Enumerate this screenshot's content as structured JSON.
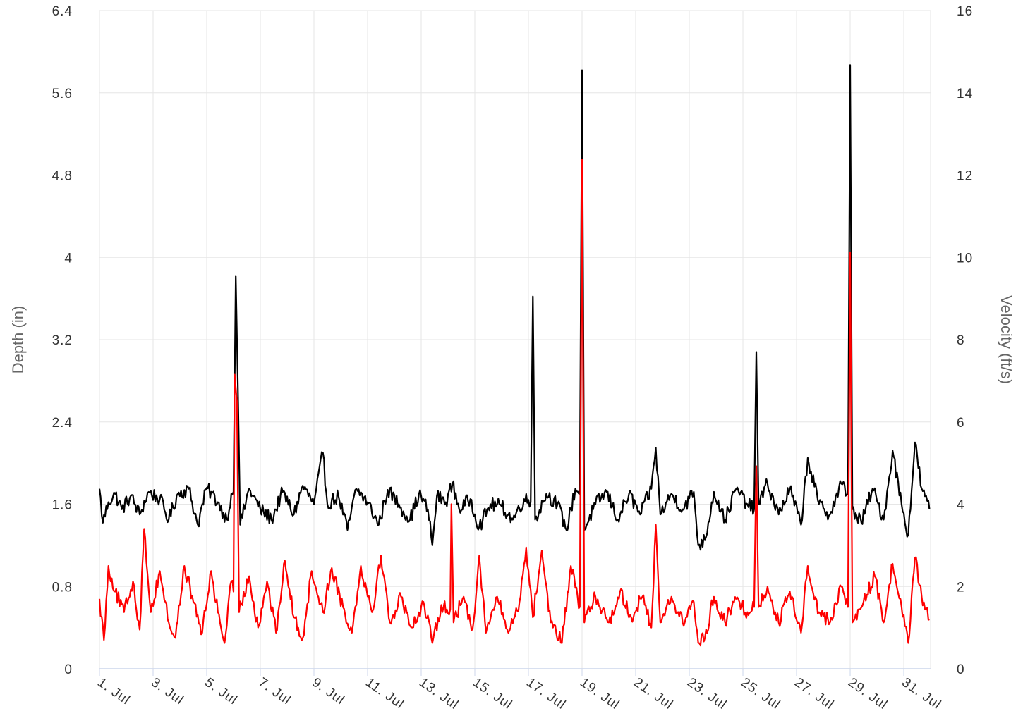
{
  "chart_data": {
    "type": "line",
    "title": "",
    "x_axis": {
      "type": "date",
      "range": [
        "2023-07-01",
        "2023-07-31T23:59"
      ],
      "tick_labels": [
        "1. Jul",
        "3. Jul",
        "5. Jul",
        "7. Jul",
        "9. Jul",
        "11. Jul",
        "13. Jul",
        "15. Jul",
        "17. Jul",
        "19. Jul",
        "21. Jul",
        "23. Jul",
        "25. Jul",
        "27. Jul",
        "29. Jul",
        "31. Jul"
      ],
      "grid": true
    },
    "y_axes": [
      {
        "id": "left",
        "label": "Depth (in)",
        "range": [
          0,
          6.4
        ],
        "tick_labels": [
          "0",
          "0.8",
          "1.6",
          "2.4",
          "3.2",
          "4",
          "4.8",
          "5.6",
          "6.4"
        ]
      },
      {
        "id": "right",
        "label": "Velocity (ft/s)",
        "range": [
          0,
          16
        ],
        "tick_labels": [
          "0",
          "2",
          "4",
          "6",
          "8",
          "10",
          "12",
          "14",
          "16"
        ]
      }
    ],
    "grid": true,
    "legend": "none",
    "colors": {
      "black_series": "#000000",
      "red_series": "#ff0000",
      "grid": "#e6e6e6",
      "x_axis_line": "#ccd6eb"
    },
    "series": [
      {
        "color": "#000000",
        "axis": "left",
        "baseline_level": 1.65,
        "points": [
          [
            "2023-07-01T00:00",
            1.75
          ],
          [
            "2023-07-01T03:00",
            1.42
          ],
          [
            "2023-07-01T08:00",
            1.62
          ],
          [
            "2023-07-01T14:00",
            1.7
          ],
          [
            "2023-07-01T20:00",
            1.55
          ],
          [
            "2023-07-02T04:00",
            1.68
          ],
          [
            "2023-07-02T12:00",
            1.5
          ],
          [
            "2023-07-02T20:00",
            1.72
          ],
          [
            "2023-07-03T06:00",
            1.65
          ],
          [
            "2023-07-03T14:00",
            1.45
          ],
          [
            "2023-07-03T22:00",
            1.7
          ],
          [
            "2023-07-04T08:00",
            1.75
          ],
          [
            "2023-07-04T16:00",
            1.4
          ],
          [
            "2023-07-05T00:00",
            1.76
          ],
          [
            "2023-07-05T10:00",
            1.62
          ],
          [
            "2023-07-05T18:00",
            1.45
          ],
          [
            "2023-07-05T22:00",
            1.7
          ],
          [
            "2023-07-06T00:00",
            1.72
          ],
          [
            "2023-07-06T02:00",
            3.82
          ],
          [
            "2023-07-06T04:00",
            2.7
          ],
          [
            "2023-07-06T06:00",
            1.4
          ],
          [
            "2023-07-06T14:00",
            1.75
          ],
          [
            "2023-07-07T00:00",
            1.55
          ],
          [
            "2023-07-07T10:00",
            1.45
          ],
          [
            "2023-07-07T20:00",
            1.72
          ],
          [
            "2023-07-08T06:00",
            1.5
          ],
          [
            "2023-07-08T14:00",
            1.78
          ],
          [
            "2023-07-09T00:00",
            1.6
          ],
          [
            "2023-07-09T08:00",
            2.1
          ],
          [
            "2023-07-09T12:00",
            1.6
          ],
          [
            "2023-07-09T22:00",
            1.68
          ],
          [
            "2023-07-10T06:00",
            1.35
          ],
          [
            "2023-07-10T14:00",
            1.75
          ],
          [
            "2023-07-11T00:00",
            1.62
          ],
          [
            "2023-07-11T10:00",
            1.4
          ],
          [
            "2023-07-11T18:00",
            1.74
          ],
          [
            "2023-07-12T04:00",
            1.6
          ],
          [
            "2023-07-12T14:00",
            1.45
          ],
          [
            "2023-07-12T22:00",
            1.7
          ],
          [
            "2023-07-13T06:00",
            1.55
          ],
          [
            "2023-07-13T10:00",
            1.2
          ],
          [
            "2023-07-13T14:00",
            1.68
          ],
          [
            "2023-07-13T22:00",
            1.62
          ],
          [
            "2023-07-14T04:00",
            1.8
          ],
          [
            "2023-07-14T10:00",
            1.55
          ],
          [
            "2023-07-14T20:00",
            1.65
          ],
          [
            "2023-07-15T04:00",
            1.38
          ],
          [
            "2023-07-15T14:00",
            1.6
          ],
          [
            "2023-07-16T00:00",
            1.58
          ],
          [
            "2023-07-16T10:00",
            1.45
          ],
          [
            "2023-07-16T20:00",
            1.65
          ],
          [
            "2023-07-17T02:00",
            1.62
          ],
          [
            "2023-07-17T04:00",
            3.62
          ],
          [
            "2023-07-17T06:00",
            1.45
          ],
          [
            "2023-07-17T16:00",
            1.7
          ],
          [
            "2023-07-18T02:00",
            1.6
          ],
          [
            "2023-07-18T10:00",
            1.35
          ],
          [
            "2023-07-18T18:00",
            1.75
          ],
          [
            "2023-07-18T22:00",
            1.7
          ],
          [
            "2023-07-19T00:00",
            5.82
          ],
          [
            "2023-07-19T02:00",
            1.35
          ],
          [
            "2023-07-19T12:00",
            1.6
          ],
          [
            "2023-07-19T22:00",
            1.72
          ],
          [
            "2023-07-20T08:00",
            1.45
          ],
          [
            "2023-07-20T18:00",
            1.7
          ],
          [
            "2023-07-21T04:00",
            1.5
          ],
          [
            "2023-07-21T14:00",
            1.75
          ],
          [
            "2023-07-21T18:00",
            2.15
          ],
          [
            "2023-07-21T22:00",
            1.5
          ],
          [
            "2023-07-22T08:00",
            1.7
          ],
          [
            "2023-07-22T18:00",
            1.55
          ],
          [
            "2023-07-23T04:00",
            1.72
          ],
          [
            "2023-07-23T08:00",
            1.2
          ],
          [
            "2023-07-23T14:00",
            1.25
          ],
          [
            "2023-07-23T22:00",
            1.72
          ],
          [
            "2023-07-24T08:00",
            1.45
          ],
          [
            "2023-07-24T18:00",
            1.75
          ],
          [
            "2023-07-25T04:00",
            1.6
          ],
          [
            "2023-07-25T10:00",
            1.55
          ],
          [
            "2023-07-25T12:00",
            3.08
          ],
          [
            "2023-07-25T14:00",
            1.6
          ],
          [
            "2023-07-25T22:00",
            1.8
          ],
          [
            "2023-07-26T08:00",
            1.5
          ],
          [
            "2023-07-26T18:00",
            1.75
          ],
          [
            "2023-07-27T04:00",
            1.4
          ],
          [
            "2023-07-27T10:00",
            2.05
          ],
          [
            "2023-07-27T20:00",
            1.6
          ],
          [
            "2023-07-28T06:00",
            1.5
          ],
          [
            "2023-07-28T16:00",
            1.8
          ],
          [
            "2023-07-28T22:00",
            1.7
          ],
          [
            "2023-07-29T00:00",
            5.87
          ],
          [
            "2023-07-29T02:00",
            1.55
          ],
          [
            "2023-07-29T10:00",
            1.42
          ],
          [
            "2023-07-29T20:00",
            1.75
          ],
          [
            "2023-07-30T06:00",
            1.45
          ],
          [
            "2023-07-30T14:00",
            2.12
          ],
          [
            "2023-07-30T22:00",
            1.6
          ],
          [
            "2023-07-31T04:00",
            1.3
          ],
          [
            "2023-07-31T10:00",
            2.2
          ],
          [
            "2023-07-31T16:00",
            1.75
          ],
          [
            "2023-07-31T23:00",
            1.55
          ]
        ]
      },
      {
        "color": "#ff0000",
        "axis": "left",
        "baseline_level": 0.65,
        "points": [
          [
            "2023-07-01T00:00",
            0.68
          ],
          [
            "2023-07-01T04:00",
            0.28
          ],
          [
            "2023-07-01T08:00",
            1.0
          ],
          [
            "2023-07-01T14:00",
            0.75
          ],
          [
            "2023-07-01T22:00",
            0.55
          ],
          [
            "2023-07-02T06:00",
            0.85
          ],
          [
            "2023-07-02T12:00",
            0.38
          ],
          [
            "2023-07-02T16:00",
            1.36
          ],
          [
            "2023-07-02T22:00",
            0.55
          ],
          [
            "2023-07-03T06:00",
            0.95
          ],
          [
            "2023-07-03T14:00",
            0.45
          ],
          [
            "2023-07-03T20:00",
            0.3
          ],
          [
            "2023-07-04T04:00",
            1.0
          ],
          [
            "2023-07-04T12:00",
            0.65
          ],
          [
            "2023-07-04T20:00",
            0.35
          ],
          [
            "2023-07-05T04:00",
            0.95
          ],
          [
            "2023-07-05T10:00",
            0.55
          ],
          [
            "2023-07-05T16:00",
            0.25
          ],
          [
            "2023-07-05T22:00",
            0.85
          ],
          [
            "2023-07-06T00:00",
            0.75
          ],
          [
            "2023-07-06T01:00",
            2.86
          ],
          [
            "2023-07-06T03:00",
            2.6
          ],
          [
            "2023-07-06T05:00",
            0.55
          ],
          [
            "2023-07-06T14:00",
            0.9
          ],
          [
            "2023-07-06T22:00",
            0.4
          ],
          [
            "2023-07-07T06:00",
            0.85
          ],
          [
            "2023-07-07T14:00",
            0.35
          ],
          [
            "2023-07-07T22:00",
            1.05
          ],
          [
            "2023-07-08T06:00",
            0.5
          ],
          [
            "2023-07-08T14:00",
            0.3
          ],
          [
            "2023-07-08T22:00",
            0.95
          ],
          [
            "2023-07-09T08:00",
            0.55
          ],
          [
            "2023-07-09T16:00",
            0.98
          ],
          [
            "2023-07-10T02:00",
            0.6
          ],
          [
            "2023-07-10T10:00",
            0.35
          ],
          [
            "2023-07-10T18:00",
            1.0
          ],
          [
            "2023-07-11T04:00",
            0.55
          ],
          [
            "2023-07-11T12:00",
            1.1
          ],
          [
            "2023-07-11T20:00",
            0.45
          ],
          [
            "2023-07-12T06:00",
            0.7
          ],
          [
            "2023-07-12T16:00",
            0.4
          ],
          [
            "2023-07-13T02:00",
            0.65
          ],
          [
            "2023-07-13T10:00",
            0.25
          ],
          [
            "2023-07-13T18:00",
            0.62
          ],
          [
            "2023-07-14T02:00",
            0.58
          ],
          [
            "2023-07-14T03:00",
            1.6
          ],
          [
            "2023-07-14T05:00",
            0.45
          ],
          [
            "2023-07-14T14:00",
            0.7
          ],
          [
            "2023-07-14T22:00",
            0.38
          ],
          [
            "2023-07-15T04:00",
            1.1
          ],
          [
            "2023-07-15T10:00",
            0.35
          ],
          [
            "2023-07-15T20:00",
            0.7
          ],
          [
            "2023-07-16T06:00",
            0.35
          ],
          [
            "2023-07-16T16:00",
            0.65
          ],
          [
            "2023-07-16T22:00",
            1.18
          ],
          [
            "2023-07-17T04:00",
            0.5
          ],
          [
            "2023-07-17T12:00",
            1.15
          ],
          [
            "2023-07-17T20:00",
            0.45
          ],
          [
            "2023-07-18T06:00",
            0.25
          ],
          [
            "2023-07-18T14:00",
            1.0
          ],
          [
            "2023-07-18T22:00",
            0.6
          ],
          [
            "2023-07-19T00:00",
            4.95
          ],
          [
            "2023-07-19T02:00",
            0.45
          ],
          [
            "2023-07-19T12:00",
            0.7
          ],
          [
            "2023-07-20T00:00",
            0.45
          ],
          [
            "2023-07-20T10:00",
            0.75
          ],
          [
            "2023-07-20T20:00",
            0.5
          ],
          [
            "2023-07-21T06:00",
            0.7
          ],
          [
            "2023-07-21T14:00",
            0.4
          ],
          [
            "2023-07-21T18:00",
            1.4
          ],
          [
            "2023-07-21T22:00",
            0.45
          ],
          [
            "2023-07-22T08:00",
            0.7
          ],
          [
            "2023-07-22T18:00",
            0.45
          ],
          [
            "2023-07-23T04:00",
            0.65
          ],
          [
            "2023-07-23T08:00",
            0.25
          ],
          [
            "2023-07-23T14:00",
            0.3
          ],
          [
            "2023-07-23T22:00",
            0.7
          ],
          [
            "2023-07-24T08:00",
            0.45
          ],
          [
            "2023-07-24T18:00",
            0.68
          ],
          [
            "2023-07-25T04:00",
            0.55
          ],
          [
            "2023-07-25T10:00",
            0.6
          ],
          [
            "2023-07-25T12:00",
            1.97
          ],
          [
            "2023-07-25T14:00",
            0.6
          ],
          [
            "2023-07-25T22:00",
            0.8
          ],
          [
            "2023-07-26T08:00",
            0.45
          ],
          [
            "2023-07-26T18:00",
            0.75
          ],
          [
            "2023-07-27T04:00",
            0.35
          ],
          [
            "2023-07-27T10:00",
            1.0
          ],
          [
            "2023-07-27T20:00",
            0.55
          ],
          [
            "2023-07-28T06:00",
            0.45
          ],
          [
            "2023-07-28T16:00",
            0.8
          ],
          [
            "2023-07-28T22:00",
            0.6
          ],
          [
            "2023-07-29T00:00",
            4.05
          ],
          [
            "2023-07-29T02:00",
            0.45
          ],
          [
            "2023-07-29T12:00",
            0.65
          ],
          [
            "2023-07-29T22:00",
            0.9
          ],
          [
            "2023-07-30T06:00",
            0.45
          ],
          [
            "2023-07-30T14:00",
            1.02
          ],
          [
            "2023-07-30T22:00",
            0.6
          ],
          [
            "2023-07-31T04:00",
            0.25
          ],
          [
            "2023-07-31T10:00",
            1.08
          ],
          [
            "2023-07-31T16:00",
            0.7
          ],
          [
            "2023-07-31T23:00",
            0.48
          ]
        ]
      }
    ]
  }
}
